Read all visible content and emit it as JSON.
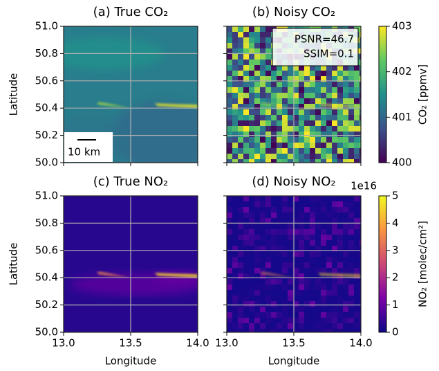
{
  "chart_data": [
    {
      "type": "heatmap",
      "title": "(a) True CO₂",
      "ylabel": "Latitude",
      "colormap": "viridis",
      "texture": "smooth",
      "xlim": [
        13,
        14
      ],
      "ylim": [
        50,
        51
      ],
      "xticks": [
        13,
        13.5,
        14
      ],
      "yticks": [
        {
          "value": 50,
          "label": "50.0"
        },
        50.2,
        50.4,
        50.6,
        50.8,
        {
          "value": 51,
          "label": "51.0"
        }
      ],
      "grid": true,
      "scalebar": "10 km"
    },
    {
      "type": "heatmap",
      "title": "(b) Noisy CO₂",
      "colormap": "viridis",
      "texture": "noisy",
      "xlim": [
        13,
        14
      ],
      "ylim": [
        50,
        51
      ],
      "xticks": [
        13,
        13.5,
        14
      ],
      "yticks": [
        50,
        50.2,
        50.4,
        50.6,
        50.8,
        51
      ],
      "grid": true,
      "annotation": [
        "PSNR=46.7",
        "SSIM=0.1"
      ]
    },
    {
      "type": "heatmap",
      "title": "(c) True NO₂",
      "ylabel": "Latitude",
      "xlabel": "Longitude",
      "colormap": "plasma",
      "texture": "smooth",
      "xlim": [
        13,
        14
      ],
      "ylim": [
        50,
        51
      ],
      "xticks": [
        {
          "value": 13,
          "label": "13.0"
        },
        13.5,
        {
          "value": 14,
          "label": "14.0"
        }
      ],
      "yticks": [
        {
          "value": 50,
          "label": "50.0"
        },
        50.2,
        50.4,
        50.6,
        50.8,
        {
          "value": 51,
          "label": "51.0"
        }
      ],
      "grid": true
    },
    {
      "type": "heatmap",
      "title": "(d) Noisy NO₂",
      "xlabel": "Longitude",
      "colormap": "plasma",
      "texture": "noisy",
      "xlim": [
        13,
        14
      ],
      "ylim": [
        50,
        51
      ],
      "xticks": [
        {
          "value": 13,
          "label": "13.0"
        },
        13.5,
        {
          "value": 14,
          "label": "14.0"
        }
      ],
      "yticks": [
        50,
        50.2,
        50.4,
        50.6,
        50.8,
        51
      ],
      "grid": true
    },
    {
      "type": "colorbar",
      "colormap": "viridis",
      "label": "CO₂ [ppmv]",
      "colors": [
        "#440154",
        "#3b528b",
        "#21918c",
        "#5ec962",
        "#fde725"
      ],
      "ylim": [
        400,
        403
      ],
      "yticks": [
        400,
        401,
        402,
        403
      ]
    },
    {
      "type": "colorbar",
      "colormap": "plasma",
      "label": "NO₂ [molec/cm²]",
      "offset_text": "1e16",
      "colors": [
        "#0d0887",
        "#7e03a8",
        "#cc4778",
        "#f89540",
        "#f0f921"
      ],
      "ylim": [
        0,
        5
      ],
      "yticks": [
        0,
        1,
        2,
        3,
        4,
        5
      ]
    }
  ]
}
